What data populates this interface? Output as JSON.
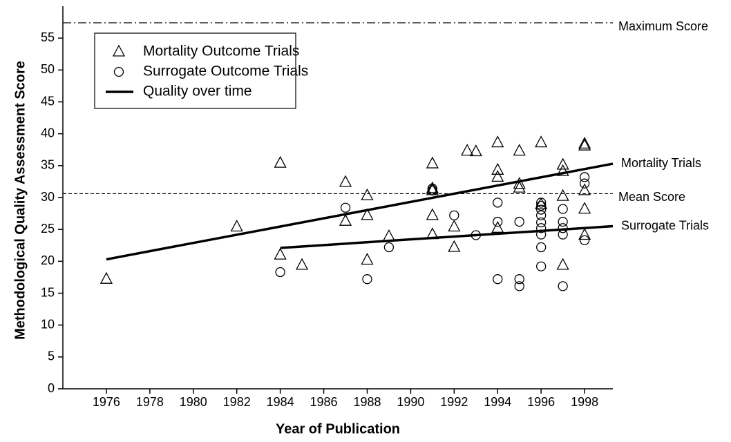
{
  "chart_data": {
    "type": "scatter",
    "xlabel": "Year of Publication",
    "ylabel": "Methodological Quality Assessment Score",
    "xlim": [
      1974,
      1999.3
    ],
    "ylim": [
      0,
      60
    ],
    "xticks": [
      1976,
      1978,
      1980,
      1982,
      1984,
      1986,
      1988,
      1990,
      1992,
      1994,
      1996,
      1998
    ],
    "yticks": [
      0,
      5,
      10,
      15,
      20,
      25,
      30,
      35,
      40,
      45,
      50,
      55
    ],
    "legend": "upper left",
    "series": [
      {
        "name": "Mortality Outcome Trials",
        "marker": "triangle",
        "color": "#000000",
        "x": [
          1976,
          1982,
          1984,
          1984,
          1985,
          1987,
          1987,
          1988,
          1988,
          1988,
          1989,
          1991,
          1991,
          1991,
          1991,
          1991,
          1992,
          1992,
          1992.6,
          1993,
          1994,
          1994,
          1994,
          1994,
          1995,
          1995,
          1995,
          1996,
          1996,
          1997,
          1997,
          1997,
          1997,
          1998,
          1998,
          1998,
          1998,
          1998
        ],
        "values": [
          17.2,
          25.4,
          35.4,
          21,
          19.4,
          32.4,
          26.3,
          30.3,
          27.2,
          20.2,
          23.9,
          35.3,
          31.4,
          31.1,
          27.2,
          24.2,
          25.4,
          22.2,
          37.3,
          37.2,
          38.6,
          34.3,
          33.2,
          25.2,
          37.3,
          32.1,
          31.5,
          38.6,
          28.9,
          35.1,
          34.1,
          30.2,
          19.4,
          38.4,
          38.1,
          31.1,
          28.2,
          24.1
        ]
      },
      {
        "name": "Surrogate Outcome Trials",
        "marker": "circle",
        "color": "#000000",
        "x": [
          1984,
          1987,
          1988,
          1989,
          1991,
          1991,
          1992,
          1993,
          1994,
          1994,
          1994,
          1995,
          1995,
          1995,
          1996,
          1996,
          1996,
          1996,
          1996,
          1996,
          1996,
          1996,
          1996,
          1997,
          1997,
          1997,
          1997,
          1997,
          1998,
          1998,
          1998
        ],
        "values": [
          18.3,
          28.4,
          17.2,
          22.2,
          31.4,
          31.1,
          27.2,
          24.1,
          29.2,
          26.2,
          17.2,
          26.2,
          17.2,
          16.1,
          29.2,
          28.7,
          28.1,
          27.2,
          26.1,
          25.2,
          24.2,
          22.2,
          19.2,
          28.2,
          26.2,
          25.2,
          24.2,
          16.1,
          33.2,
          32.2,
          23.3
        ]
      }
    ],
    "trend_legend": "Quality over time",
    "trend_lines": [
      {
        "label": "Mortality Trials",
        "x": [
          1976,
          1999.3
        ],
        "values": [
          20.3,
          35.3
        ]
      },
      {
        "label": "Surrogate Trials",
        "x": [
          1984,
          1999.3
        ],
        "values": [
          22.1,
          25.5
        ]
      }
    ],
    "reference_lines": [
      {
        "label": "Maximum Score",
        "value": 57.4,
        "style": "dashdot"
      },
      {
        "label": "Mean Score",
        "value": 30.6,
        "style": "dashed"
      }
    ]
  }
}
